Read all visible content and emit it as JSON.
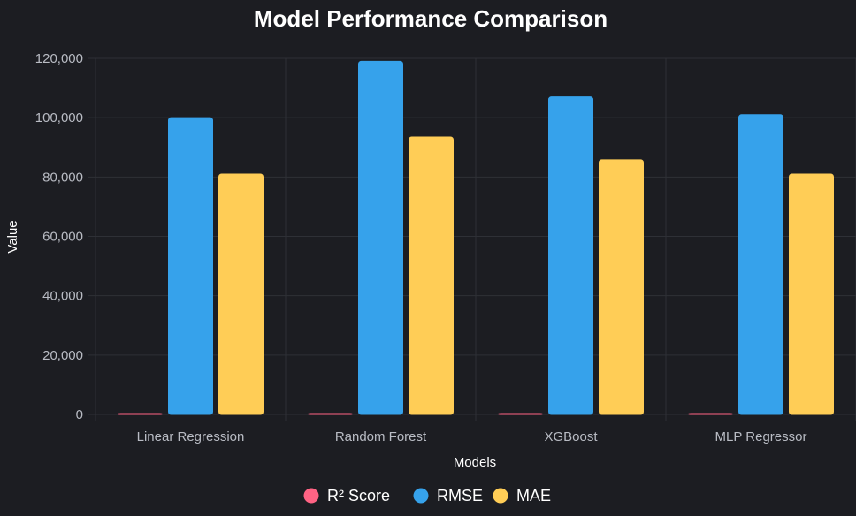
{
  "chart_data": {
    "type": "bar",
    "title": "Model Performance Comparison",
    "xlabel": "Models",
    "ylabel": "Value",
    "categories": [
      "Linear Regression",
      "Random Forest",
      "XGBoost",
      "MLP Regressor"
    ],
    "series": [
      {
        "name": "R² Score",
        "color": "#ff6384",
        "values": [
          0.65,
          0.5,
          0.6,
          0.64
        ]
      },
      {
        "name": "RMSE",
        "color": "#36a2eb",
        "values": [
          100000,
          119000,
          107000,
          101000
        ]
      },
      {
        "name": "MAE",
        "color": "#ffcd56",
        "values": [
          81000,
          93500,
          85800,
          81000
        ]
      }
    ],
    "ylim": [
      0,
      120000
    ],
    "yticks": [
      0,
      20000,
      40000,
      60000,
      80000,
      100000,
      120000
    ],
    "ytick_labels": [
      "0",
      "20,000",
      "40,000",
      "60,000",
      "80,000",
      "100,000",
      "120,000"
    ],
    "grid": true,
    "legend_position": "bottom-center"
  }
}
